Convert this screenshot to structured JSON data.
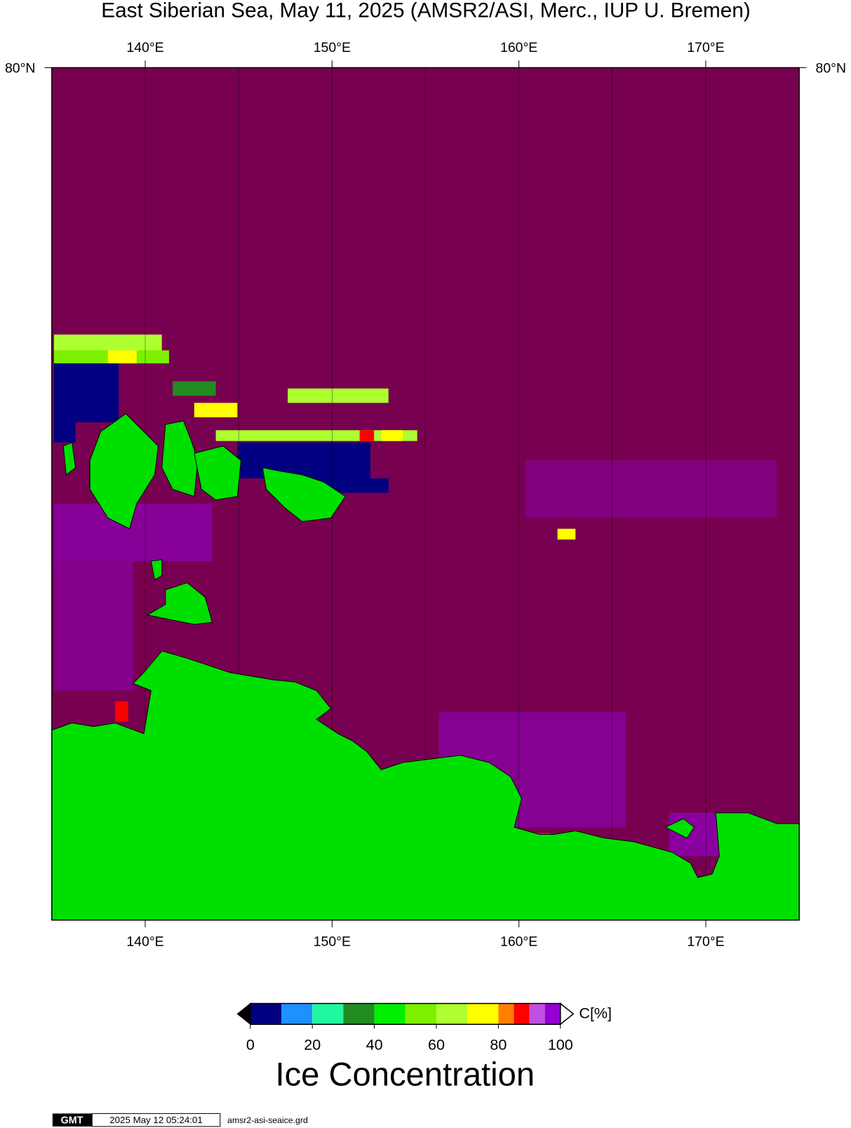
{
  "title": "East Siberian Sea, May 11, 2025 (AMSR2/ASI, Merc., IUP U. Bremen)",
  "map": {
    "lon_range": [
      135,
      175
    ],
    "lon_ticks": [
      {
        "value": 140,
        "label": "140°E"
      },
      {
        "value": 150,
        "label": "150°E"
      },
      {
        "value": 160,
        "label": "160°E"
      },
      {
        "value": 170,
        "label": "170°E"
      }
    ],
    "gridline_lons": [
      140,
      145,
      150,
      155,
      160,
      165,
      170
    ],
    "lat_label": "80°N"
  },
  "colorbar": {
    "bounds": [
      0,
      10,
      20,
      30,
      40,
      50,
      60,
      70,
      80,
      85,
      90,
      95,
      100
    ],
    "colors": [
      "#000080",
      "#1e90ff",
      "#20f8a0",
      "#228b22",
      "#00ee00",
      "#7cf000",
      "#adff2f",
      "#ffff00",
      "#ff7f00",
      "#ff0000",
      "#c050e0",
      "#9400d3"
    ],
    "ticks": [
      0,
      20,
      40,
      60,
      80,
      100
    ],
    "unit": "C[%]",
    "title": "Ice Concentration"
  },
  "footer": {
    "logo": "GMT",
    "timestamp": "2025 May 12 05:24:01",
    "file": "amsr2-asi-seaice.grd"
  }
}
